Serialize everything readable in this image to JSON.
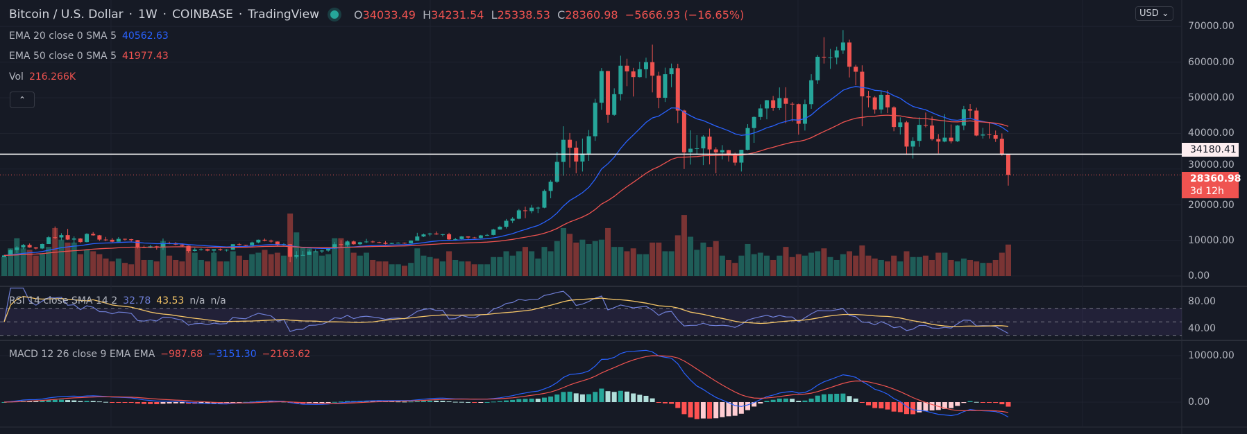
{
  "header": {
    "symbol": "Bitcoin / U.S. Dollar",
    "interval": "1W",
    "exchange": "COINBASE",
    "source": "TradingView",
    "sep": "·",
    "o_label": "O",
    "open": "34033.49",
    "h_label": "H",
    "high": "34231.54",
    "l_label": "L",
    "low": "25338.53",
    "c_label": "C",
    "close": "28360.98",
    "change": "−5666.93 (−16.65%)"
  },
  "legends": {
    "ema20": {
      "label": "EMA 20 close 0 SMA 5",
      "value": "40562.63"
    },
    "ema50": {
      "label": "EMA 50 close 0 SMA 5",
      "value": "41977.43"
    },
    "vol": {
      "label": "Vol",
      "value": "216.266K"
    },
    "collapse_icon": "chevron-up",
    "rsi": {
      "label": "RSI 14 close SMA 14 2",
      "value": "32.78",
      "sma": "43.53",
      "extra1": "n/a",
      "extra2": "n/a"
    },
    "macd": {
      "label": "MACD 12 26 close 9 EMA EMA",
      "hist": "−987.68",
      "macd": "−3151.30",
      "signal": "−2163.62"
    }
  },
  "price_axis": {
    "currency": "USD",
    "ticks": [
      "70000.00",
      "60000.00",
      "50000.00",
      "40000.00",
      "30000.00",
      "20000.00",
      "10000.00",
      "0.00"
    ],
    "line_label": "34180.41",
    "last_price": "28360.98",
    "countdown": "3d 12h"
  },
  "rsi_axis": {
    "ticks": [
      "80.00",
      "40.00"
    ]
  },
  "macd_axis": {
    "ticks": [
      "10000.00",
      "0.00"
    ]
  },
  "colors": {
    "up": "#26a69a",
    "down": "#ef5350",
    "ema20": "#2962ff",
    "ema50": "#ef5350",
    "rsi": "#6f7fd6",
    "rsi_sma": "#f7c768",
    "macd": "#2962ff",
    "signal": "#ef5350"
  },
  "chart_data": {
    "type": "candlestick",
    "ylim": [
      0,
      70000
    ],
    "horizontal_line": 34180.41,
    "last_price": 28360.98,
    "rsi_ylim": [
      20,
      100
    ],
    "rsi_bands": [
      70,
      50,
      30
    ],
    "ohlcv_fields": [
      "open",
      "high",
      "low",
      "close",
      "volume_k"
    ],
    "ohlcv": [
      [
        5270,
        5900,
        5250,
        5760,
        130
      ],
      [
        5760,
        7500,
        5740,
        7250,
        190
      ],
      [
        7250,
        8350,
        6400,
        8000,
        260
      ],
      [
        8000,
        8950,
        7500,
        8700,
        190
      ],
      [
        8700,
        9100,
        7900,
        8000,
        180
      ],
      [
        8000,
        8100,
        7450,
        7700,
        140
      ],
      [
        7700,
        9100,
        7500,
        8950,
        150
      ],
      [
        8950,
        11200,
        8950,
        10850,
        200
      ],
      [
        10850,
        13880,
        10300,
        10800,
        330
      ],
      [
        10800,
        12000,
        10000,
        11450,
        250
      ],
      [
        11450,
        13200,
        10100,
        10200,
        230
      ],
      [
        10200,
        11100,
        9100,
        10500,
        230
      ],
      [
        10500,
        10650,
        9200,
        9500,
        150
      ],
      [
        9500,
        12000,
        9400,
        11800,
        180
      ],
      [
        11800,
        12300,
        11300,
        11400,
        170
      ],
      [
        11400,
        11500,
        9850,
        10200,
        150
      ],
      [
        10200,
        10950,
        9750,
        10150,
        120
      ],
      [
        10150,
        10650,
        9400,
        9600,
        100
      ],
      [
        9600,
        10900,
        9600,
        10400,
        120
      ],
      [
        10400,
        10480,
        9900,
        10300,
        90
      ],
      [
        10300,
        10400,
        9650,
        10050,
        80
      ],
      [
        10050,
        10100,
        7700,
        8060,
        200
      ],
      [
        8060,
        8530,
        7800,
        7870,
        110
      ],
      [
        7870,
        8700,
        7780,
        8300,
        110
      ],
      [
        8300,
        8450,
        7400,
        7950,
        100
      ],
      [
        7950,
        10500,
        7300,
        9230,
        240
      ],
      [
        9230,
        9600,
        8900,
        9200,
        140
      ],
      [
        9200,
        9500,
        8600,
        8800,
        110
      ],
      [
        8800,
        9100,
        8150,
        8470,
        100
      ],
      [
        8470,
        8520,
        6520,
        7000,
        200
      ],
      [
        7000,
        7850,
        6850,
        7400,
        160
      ],
      [
        7400,
        7750,
        7100,
        7500,
        110
      ],
      [
        7500,
        7650,
        6900,
        7100,
        100
      ],
      [
        7100,
        7500,
        6430,
        7500,
        160
      ],
      [
        7500,
        7700,
        7050,
        7250,
        100
      ],
      [
        7250,
        7500,
        6850,
        7350,
        100
      ],
      [
        7350,
        8900,
        7350,
        8900,
        170
      ],
      [
        8900,
        9200,
        8520,
        8700,
        140
      ],
      [
        8700,
        8750,
        8250,
        8600,
        110
      ],
      [
        8600,
        9600,
        8600,
        9400,
        150
      ],
      [
        9400,
        10200,
        9150,
        10150,
        160
      ],
      [
        10150,
        10500,
        9700,
        9900,
        180
      ],
      [
        9900,
        10200,
        9300,
        9650,
        150
      ],
      [
        9650,
        9700,
        8450,
        8600,
        160
      ],
      [
        8600,
        9200,
        8500,
        8900,
        140
      ],
      [
        8900,
        8920,
        3850,
        5350,
        430
      ],
      [
        5350,
        6950,
        4900,
        5830,
        300
      ],
      [
        5830,
        7000,
        5800,
        5880,
        200
      ],
      [
        5880,
        7300,
        5880,
        6850,
        190
      ],
      [
        6850,
        7470,
        6750,
        6900,
        170
      ],
      [
        6900,
        7270,
        6470,
        7120,
        140
      ],
      [
        7120,
        7800,
        6800,
        7700,
        150
      ],
      [
        7700,
        9480,
        7600,
        8900,
        260
      ],
      [
        8900,
        10050,
        8100,
        8700,
        260
      ],
      [
        8700,
        9950,
        8200,
        9680,
        230
      ],
      [
        9680,
        9900,
        8800,
        8900,
        160
      ],
      [
        8900,
        9600,
        8650,
        9450,
        140
      ],
      [
        9450,
        10400,
        9250,
        9650,
        160
      ],
      [
        9650,
        9950,
        9250,
        9470,
        110
      ],
      [
        9470,
        9600,
        9200,
        9300,
        100
      ],
      [
        9300,
        9780,
        8830,
        9000,
        100
      ],
      [
        9000,
        9300,
        8950,
        9240,
        80
      ],
      [
        9240,
        9460,
        9150,
        9300,
        80
      ],
      [
        9300,
        9380,
        9000,
        9160,
        70
      ],
      [
        9160,
        9990,
        9100,
        9900,
        90
      ],
      [
        9900,
        12100,
        9900,
        11070,
        190
      ],
      [
        11070,
        11900,
        10900,
        11650,
        140
      ],
      [
        11650,
        12100,
        11150,
        11900,
        130
      ],
      [
        11900,
        12480,
        11550,
        11650,
        120
      ],
      [
        11650,
        11800,
        11100,
        11700,
        100
      ],
      [
        11700,
        12100,
        9950,
        10250,
        170
      ],
      [
        10250,
        10700,
        9900,
        10330,
        110
      ],
      [
        10330,
        11180,
        10250,
        11080,
        100
      ],
      [
        11080,
        11100,
        10350,
        10780,
        100
      ],
      [
        10780,
        10950,
        10500,
        10660,
        80
      ],
      [
        10660,
        11500,
        10550,
        11370,
        80
      ],
      [
        11370,
        11750,
        11230,
        11500,
        80
      ],
      [
        11500,
        13250,
        11380,
        13030,
        130
      ],
      [
        13030,
        14100,
        12950,
        13800,
        130
      ],
      [
        13800,
        15980,
        13300,
        15480,
        170
      ],
      [
        15480,
        16500,
        14850,
        16050,
        140
      ],
      [
        16050,
        18800,
        15900,
        18400,
        170
      ],
      [
        18400,
        19450,
        16200,
        18200,
        200
      ],
      [
        18200,
        19920,
        17600,
        19150,
        170
      ],
      [
        19150,
        19450,
        17650,
        19150,
        120
      ],
      [
        19150,
        24250,
        19000,
        23850,
        200
      ],
      [
        23850,
        26900,
        21800,
        26450,
        170
      ],
      [
        26450,
        34800,
        26100,
        32000,
        240
      ],
      [
        32000,
        42000,
        28100,
        38200,
        330
      ],
      [
        38200,
        40100,
        30400,
        36000,
        290
      ],
      [
        36000,
        37850,
        28800,
        32100,
        230
      ],
      [
        32100,
        38550,
        29300,
        34300,
        250
      ],
      [
        34300,
        40950,
        32300,
        39200,
        220
      ],
      [
        39200,
        49700,
        37900,
        48600,
        240
      ],
      [
        48600,
        58350,
        46600,
        57500,
        250
      ],
      [
        57500,
        57550,
        43000,
        45200,
        330
      ],
      [
        45200,
        52650,
        44950,
        51000,
        200
      ],
      [
        51000,
        61800,
        49250,
        59000,
        200
      ],
      [
        59000,
        60950,
        53250,
        57400,
        170
      ],
      [
        57400,
        58400,
        50350,
        55800,
        190
      ],
      [
        55800,
        60100,
        55700,
        58000,
        150
      ],
      [
        58000,
        61250,
        55500,
        60000,
        150
      ],
      [
        60000,
        64900,
        51500,
        56200,
        230
      ],
      [
        56200,
        57300,
        47050,
        50000,
        230
      ],
      [
        50000,
        58450,
        48800,
        56600,
        170
      ],
      [
        56600,
        59600,
        52950,
        58300,
        170
      ],
      [
        58300,
        59550,
        42900,
        46400,
        280
      ],
      [
        46400,
        46650,
        30000,
        34700,
        420
      ],
      [
        34700,
        40850,
        31250,
        35700,
        270
      ],
      [
        35700,
        39500,
        34200,
        35800,
        180
      ],
      [
        35800,
        39500,
        31100,
        39100,
        230
      ],
      [
        39100,
        41350,
        31300,
        35500,
        200
      ],
      [
        35500,
        36100,
        28800,
        34700,
        240
      ],
      [
        34700,
        36700,
        32700,
        35300,
        140
      ],
      [
        35300,
        35400,
        32100,
        34250,
        110
      ],
      [
        34250,
        34600,
        31000,
        31800,
        90
      ],
      [
        31800,
        35400,
        29300,
        35400,
        140
      ],
      [
        35400,
        42600,
        35250,
        41500,
        220
      ],
      [
        41500,
        44800,
        37350,
        44600,
        150
      ],
      [
        44600,
        48150,
        43800,
        47000,
        160
      ],
      [
        47000,
        49400,
        43950,
        49300,
        140
      ],
      [
        49300,
        50500,
        46350,
        47100,
        110
      ],
      [
        47100,
        52900,
        46550,
        49900,
        140
      ],
      [
        49900,
        52950,
        42850,
        48300,
        200
      ],
      [
        48300,
        48800,
        43300,
        48200,
        130
      ],
      [
        48200,
        48350,
        39650,
        42700,
        150
      ],
      [
        42700,
        49500,
        40800,
        48200,
        140
      ],
      [
        48200,
        56600,
        46900,
        54900,
        160
      ],
      [
        54900,
        62000,
        53900,
        61500,
        170
      ],
      [
        61500,
        67000,
        59600,
        61300,
        190
      ],
      [
        61300,
        63700,
        58100,
        61300,
        130
      ],
      [
        61300,
        64300,
        59400,
        63300,
        110
      ],
      [
        63300,
        69000,
        62300,
        65500,
        150
      ],
      [
        65500,
        66300,
        55700,
        58700,
        170
      ],
      [
        58700,
        59250,
        53500,
        57300,
        140
      ],
      [
        57300,
        59100,
        42000,
        50400,
        210
      ],
      [
        50400,
        51950,
        47300,
        50100,
        140
      ],
      [
        50100,
        50500,
        45550,
        46700,
        120
      ],
      [
        46700,
        51900,
        45600,
        50800,
        110
      ],
      [
        50800,
        52100,
        45700,
        47300,
        100
      ],
      [
        47300,
        47600,
        40600,
        41800,
        140
      ],
      [
        41800,
        44500,
        39700,
        43100,
        100
      ],
      [
        43100,
        43500,
        34000,
        36300,
        170
      ],
      [
        36300,
        38900,
        32950,
        37900,
        130
      ],
      [
        37900,
        44500,
        36250,
        42400,
        130
      ],
      [
        42400,
        45850,
        41700,
        42200,
        140
      ],
      [
        42200,
        44750,
        38000,
        38400,
        110
      ],
      [
        38400,
        39800,
        34350,
        37700,
        160
      ],
      [
        37700,
        45400,
        37500,
        38800,
        160
      ],
      [
        38800,
        42500,
        37200,
        37800,
        110
      ],
      [
        37800,
        42400,
        37550,
        42200,
        100
      ],
      [
        42200,
        47700,
        40900,
        46800,
        120
      ],
      [
        46800,
        48250,
        44350,
        46400,
        110
      ],
      [
        46400,
        47200,
        39200,
        39400,
        100
      ],
      [
        39400,
        41550,
        38550,
        39700,
        90
      ],
      [
        39700,
        42950,
        38550,
        39500,
        90
      ],
      [
        39500,
        40800,
        37600,
        38500,
        110
      ],
      [
        38500,
        40000,
        33700,
        34033.49,
        160
      ],
      [
        34033.49,
        34231.54,
        25338.53,
        28360.98,
        216.266
      ]
    ]
  }
}
